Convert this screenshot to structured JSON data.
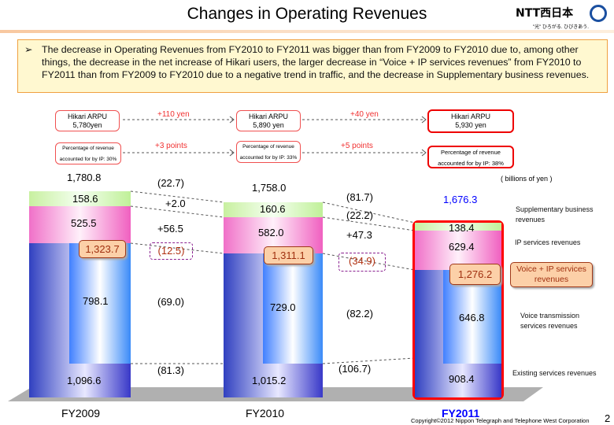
{
  "title": "Changes in Operating Revenues",
  "logo": {
    "name": "NTT西日本",
    "tagline": "\"光\" ひろがる. ひびきあう."
  },
  "bullet": "The decrease in Operating Revenues from FY2010 to FY2011 was bigger than from FY2009 to FY2010 due to, among other things, the decrease in the net increase of Hikari users, the larger decrease in “Voice + IP services revenues” from FY2010 to FY2011 than from FY2009 to FY2010 due to a negative trend in traffic, and the decrease in Supplementary business revenues.",
  "arpu": {
    "label": "Hikari ARPU",
    "fy2009": "5,780yen",
    "fy2010": "5,890 yen",
    "fy2011": "5,930 yen",
    "change1": "+110 yen",
    "change2": "+40 yen"
  },
  "ip_share": {
    "label": "Percentage of revenue",
    "fy2009": "accounted for by IP: 30%",
    "fy2010": "accounted for by IP: 33%",
    "fy2011": "accounted for by IP: 38%",
    "change1": "+3 points",
    "change2": "+5 points"
  },
  "unit": "( billions of yen )",
  "colors": {
    "supplementary": "#c8f0a0",
    "ip": "#f070c8",
    "existing": "#3040c0",
    "voice": "#4080ff",
    "highlight": "#ff0000",
    "fy2011": "#0000ff"
  },
  "chart_data": {
    "type": "bar",
    "stacked": true,
    "categories": [
      "FY2009",
      "FY2010",
      "FY2011"
    ],
    "totals": [
      "1,780.8",
      "1,758.0",
      "1,676.3"
    ],
    "series": [
      {
        "name": "Existing services revenues",
        "values": [
          "1,096.6",
          "1,015.2",
          "908.4"
        ]
      },
      {
        "name": "Voice transmission services revenues",
        "values": [
          "798.1",
          "729.0",
          "646.8"
        ]
      },
      {
        "name": "IP services revenues",
        "values": [
          "525.5",
          "582.0",
          "629.4"
        ]
      },
      {
        "name": "Supplementary business revenues",
        "values": [
          "158.6",
          "160.6",
          "138.4"
        ]
      }
    ],
    "voice_ip": {
      "name": "Voice + IP services revenues",
      "values": [
        "1,323.7",
        "1,311.1",
        "1,276.2"
      ]
    },
    "changes": {
      "fy2009_fy2010": {
        "total": "(22.7)",
        "supplementary": "+2.0",
        "ip": "+56.5",
        "voice_ip": "(12.5)",
        "voice": "(69.0)",
        "existing": "(81.3)"
      },
      "fy2010_fy2011": {
        "total": "(81.7)",
        "supplementary": "(22.2)",
        "ip": "+47.3",
        "voice_ip": "(34.9)",
        "voice": "(82.2)",
        "existing": "(106.7)"
      }
    }
  },
  "legend": {
    "supplementary": "Supplementary business revenues",
    "ip": "IP services revenues",
    "voice_ip": "Voice + IP services revenues",
    "voice": "Voice transmission services revenues",
    "existing": "Existing services revenues"
  },
  "footer": {
    "copyright": "Copyright©2012 Nippon Telegraph and Telephone West Corporation",
    "page": "2"
  }
}
